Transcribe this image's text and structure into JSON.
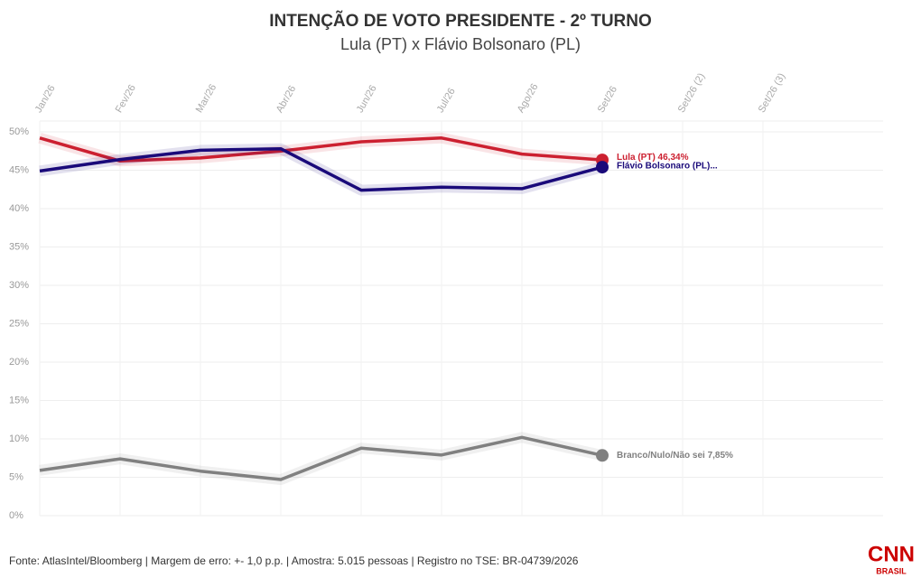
{
  "chart_data": {
    "type": "line",
    "title": "INTENÇÃO DE VOTO PRESIDENTE - 2º TURNO",
    "subtitle": "Lula (PT) x Flávio Bolsonaro (PL)",
    "categories": [
      "Jan/26",
      "Fev/26",
      "Mar/26",
      "Abr/26",
      "Jun/26",
      "Jul/26",
      "Ago/26",
      "Set/26",
      "Set/26 (2)",
      "Set/26 (3)"
    ],
    "series": [
      {
        "label": "Lula (PT) 46,34%",
        "color": "#cc2030",
        "values": [
          49.2,
          46.2,
          46.6,
          47.5,
          48.7,
          49.2,
          47.1,
          46.34,
          null,
          null
        ]
      },
      {
        "label": "Flávio Bolsonaro (PL)...",
        "color": "#1a0a7a",
        "values": [
          44.9,
          46.4,
          47.6,
          47.8,
          42.4,
          42.8,
          42.6,
          45.4,
          null,
          null
        ]
      },
      {
        "label": "Branco/Nulo/Não sei 7,85%",
        "color": "#808080",
        "values": [
          5.9,
          7.4,
          5.8,
          4.7,
          8.8,
          7.9,
          10.2,
          7.85,
          null,
          null
        ]
      }
    ],
    "ylim": [
      0,
      50
    ],
    "yticks": [
      {
        "value": 0,
        "label": "0%"
      },
      {
        "value": 5,
        "label": "5%"
      },
      {
        "value": 10,
        "label": "10%"
      },
      {
        "value": 15,
        "label": "15%"
      },
      {
        "value": 20,
        "label": "20%"
      },
      {
        "value": 25,
        "label": "25%"
      },
      {
        "value": 30,
        "label": "30%"
      },
      {
        "value": 35,
        "label": "35%"
      },
      {
        "value": 40,
        "label": "40%"
      },
      {
        "value": 45,
        "label": "45%"
      },
      {
        "value": 50,
        "label": "50%"
      }
    ],
    "grid": true,
    "source": "Fonte: AtlasIntel/Bloomberg | Margem de erro: +- 1,0 p.p. | Amostra: 5.015 pessoas | Registro no TSE: BR-04739/2026",
    "logo": "CNN",
    "logo_sub": "BRASIL"
  }
}
